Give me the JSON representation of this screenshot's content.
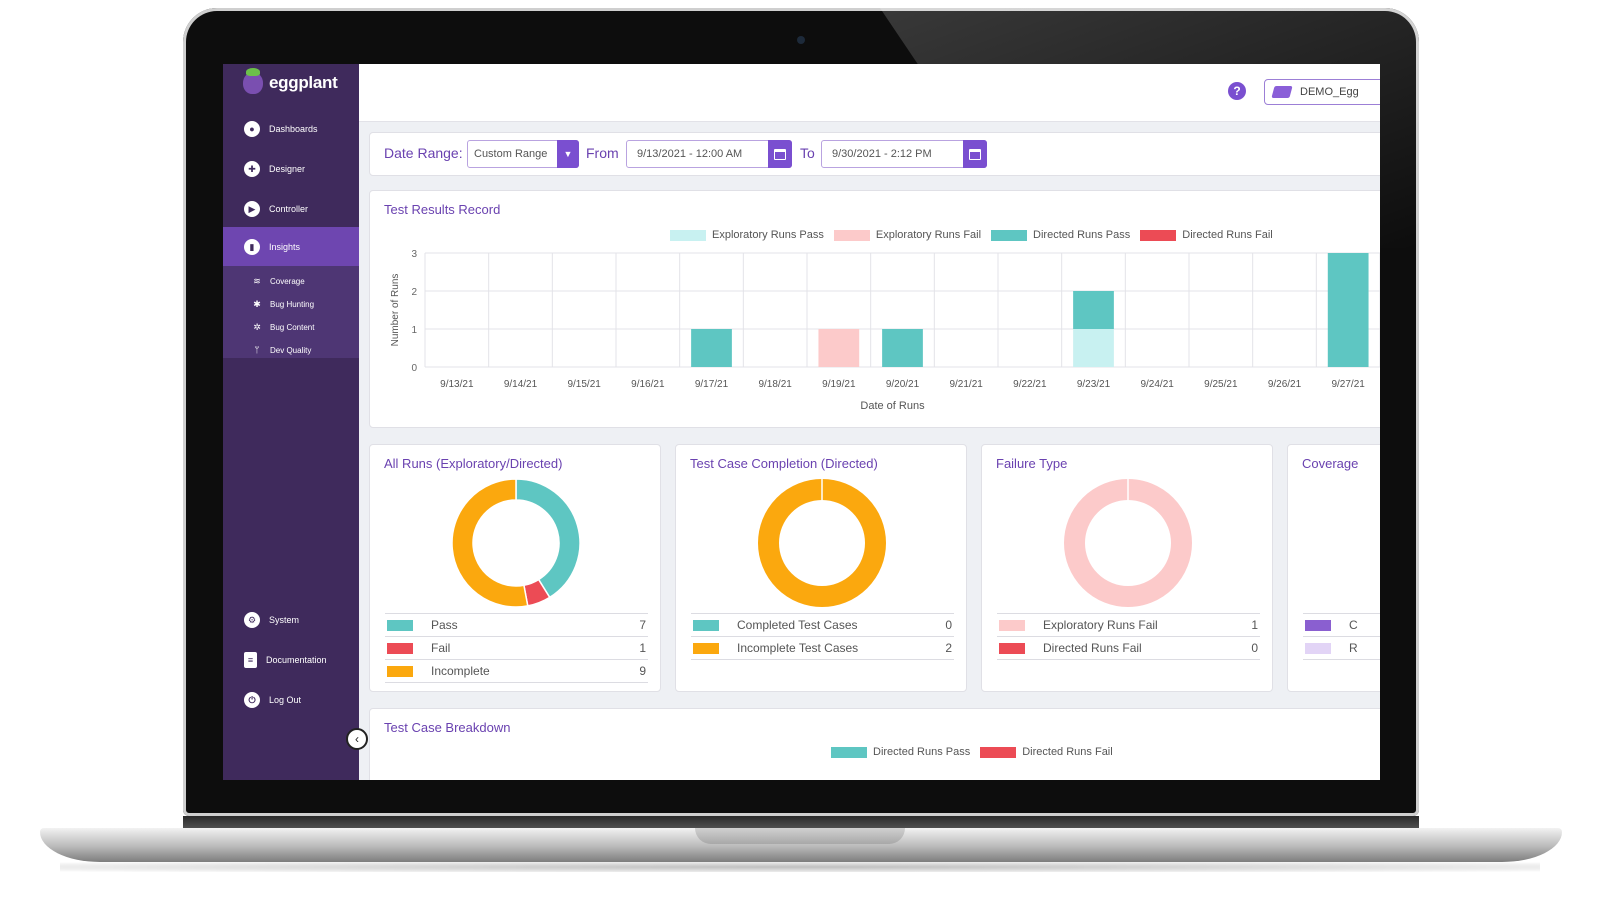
{
  "sidebar": {
    "logo": "eggplant",
    "nav": [
      {
        "label": "Dashboards",
        "icon": "person-icon"
      },
      {
        "label": "Designer",
        "icon": "designer-icon"
      },
      {
        "label": "Controller",
        "icon": "play-icon"
      },
      {
        "label": "Insights",
        "icon": "chart-icon",
        "active": true
      }
    ],
    "subnav": [
      {
        "label": "Coverage",
        "icon": "layers-icon"
      },
      {
        "label": "Bug Hunting",
        "icon": "bug-icon"
      },
      {
        "label": "Bug Content",
        "icon": "bug-content-icon"
      },
      {
        "label": "Dev Quality",
        "icon": "branch-icon"
      }
    ],
    "bottom_nav": [
      {
        "label": "System",
        "icon": "gear-icon"
      },
      {
        "label": "Documentation",
        "icon": "document-icon"
      },
      {
        "label": "Log Out",
        "icon": "power-icon"
      }
    ]
  },
  "topbar": {
    "help": "?",
    "account": "DEMO_Egg"
  },
  "filter": {
    "date_range_label": "Date Range:",
    "range_value": "Custom Range",
    "from_label": "From",
    "from_value": "9/13/2021 - 12:00 AM",
    "to_label": "To",
    "to_value": "9/30/2021 - 2:12 PM"
  },
  "test_results": {
    "title": "Test Results Record",
    "legend": [
      {
        "label": "Exploratory Runs Pass",
        "color": "#c8f1f1"
      },
      {
        "label": "Exploratory Runs Fail",
        "color": "#fccaca"
      },
      {
        "label": "Directed Runs Pass",
        "color": "#5ec6c2"
      },
      {
        "label": "Directed Runs Fail",
        "color": "#ec4b55"
      }
    ]
  },
  "chart_data": [
    {
      "type": "bar",
      "title": "Test Results Record",
      "xlabel": "Date of Runs",
      "ylabel": "Number of Runs",
      "ylim": [
        0,
        3
      ],
      "yticks": [
        "0",
        "1",
        "2",
        "3"
      ],
      "stacked": true,
      "categories": [
        "9/13/21",
        "9/14/21",
        "9/15/21",
        "9/16/21",
        "9/17/21",
        "9/18/21",
        "9/19/21",
        "9/20/21",
        "9/21/21",
        "9/22/21",
        "9/23/21",
        "9/24/21",
        "9/25/21",
        "9/26/21",
        "9/27/21"
      ],
      "series": [
        {
          "name": "Exploratory Runs Pass",
          "color": "#c8f1f1",
          "values": [
            0,
            0,
            0,
            0,
            0,
            0,
            0,
            0,
            0,
            0,
            1,
            0,
            0,
            0,
            0
          ]
        },
        {
          "name": "Exploratory Runs Fail",
          "color": "#fccaca",
          "values": [
            0,
            0,
            0,
            0,
            0,
            0,
            1,
            0,
            0,
            0,
            0,
            0,
            0,
            0,
            0
          ]
        },
        {
          "name": "Directed Runs Pass",
          "color": "#5ec6c2",
          "values": [
            0,
            0,
            0,
            0,
            1,
            0,
            0,
            1,
            0,
            0,
            1,
            0,
            0,
            0,
            3
          ]
        },
        {
          "name": "Directed Runs Fail",
          "color": "#ec4b55",
          "values": [
            0,
            0,
            0,
            0,
            0,
            0,
            0,
            0,
            0,
            0,
            0,
            0,
            0,
            0,
            0
          ]
        }
      ],
      "grid": true,
      "legend_position": "top"
    },
    {
      "type": "pie",
      "title": "All Runs (Exploratory/Directed)",
      "labels": [
        "Pass",
        "Fail",
        "Incomplete"
      ],
      "values": [
        7,
        1,
        9
      ],
      "colors": [
        "#5ec6c2",
        "#ec4b55",
        "#fba80e"
      ]
    },
    {
      "type": "pie",
      "title": "Test Case Completion (Directed)",
      "labels": [
        "Completed Test Cases",
        "Incomplete Test Cases"
      ],
      "values": [
        0,
        2
      ],
      "colors": [
        "#5ec6c2",
        "#fba80e"
      ]
    },
    {
      "type": "pie",
      "title": "Failure Type",
      "labels": [
        "Exploratory Runs Fail",
        "Directed Runs Fail"
      ],
      "values": [
        1,
        0
      ],
      "colors": [
        "#fccaca",
        "#ec4b55"
      ]
    }
  ],
  "donuts": [
    {
      "title": "All Runs (Exploratory/Directed)",
      "rows": [
        {
          "label": "Pass",
          "value": "7",
          "color": "#5ec6c2"
        },
        {
          "label": "Fail",
          "value": "1",
          "color": "#ec4b55"
        },
        {
          "label": "Incomplete",
          "value": "9",
          "color": "#fba80e"
        }
      ]
    },
    {
      "title": "Test Case Completion (Directed)",
      "rows": [
        {
          "label": "Completed Test Cases",
          "value": "0",
          "color": "#5ec6c2"
        },
        {
          "label": "Incomplete Test Cases",
          "value": "2",
          "color": "#fba80e"
        }
      ]
    },
    {
      "title": "Failure Type",
      "rows": [
        {
          "label": "Exploratory Runs Fail",
          "value": "1",
          "color": "#fccaca"
        },
        {
          "label": "Directed Runs Fail",
          "value": "0",
          "color": "#ec4b55"
        }
      ]
    },
    {
      "title": "Coverage",
      "rows": [
        {
          "label": "C",
          "value": "",
          "color": "#8a5fd0"
        },
        {
          "label": "R",
          "value": "",
          "color": "#e2d4f6"
        }
      ]
    }
  ],
  "breakdown": {
    "title": "Test Case Breakdown",
    "legend": [
      {
        "label": "Directed Runs Pass",
        "color": "#5ec6c2"
      },
      {
        "label": "Directed Runs Fail",
        "color": "#ec4b55"
      }
    ]
  }
}
